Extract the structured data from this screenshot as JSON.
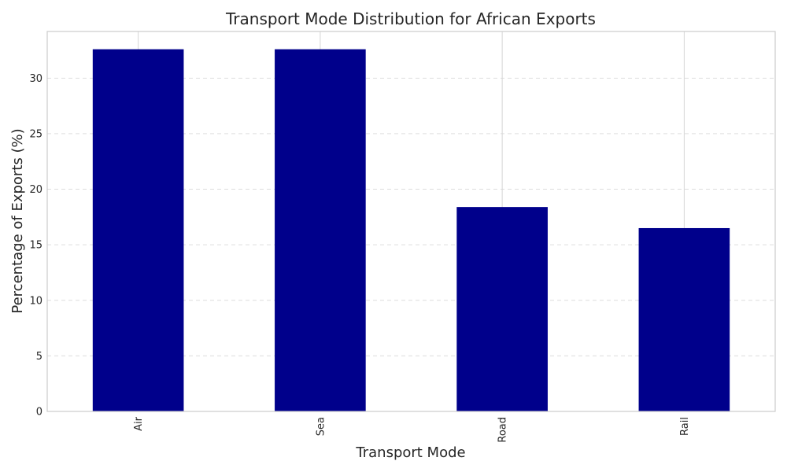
{
  "chart_data": {
    "type": "bar",
    "title": "Transport Mode Distribution for African Exports",
    "xlabel": "Transport Mode",
    "ylabel": "Percentage of Exports (%)",
    "categories": [
      "Air",
      "Sea",
      "Road",
      "Rail"
    ],
    "values": [
      32.6,
      32.6,
      18.4,
      16.5
    ],
    "ylim": [
      0,
      34.2
    ],
    "yticks": [
      0,
      5,
      10,
      15,
      20,
      25,
      30
    ],
    "bar_color": "#00008b",
    "grid": true,
    "x_tick_rotation": "vertical"
  }
}
